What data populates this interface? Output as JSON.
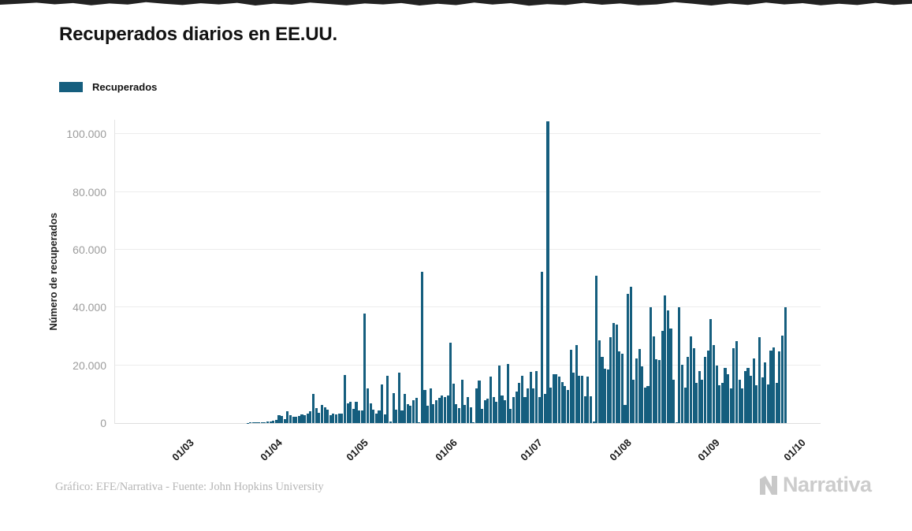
{
  "decor": {
    "top_strip_color": "#222222"
  },
  "header": {
    "title": "Recuperados diarios en EE.UU."
  },
  "legend": {
    "label": "Recuperados",
    "color": "#155e7e"
  },
  "footer": {
    "credit": "Gráfico: EFE/Narrativa - Fuente: John Hopkins University",
    "brand": "Narrativa"
  },
  "chart_data": {
    "type": "bar",
    "title": "Recuperados diarios en EE.UU.",
    "xlabel": "",
    "ylabel": "Número de recuperados",
    "series_name": "Recuperados",
    "bar_color": "#155e7e",
    "grid": "horizontal",
    "legend_position": "top-left",
    "ylim": [
      0,
      105000
    ],
    "y_ticks": [
      {
        "value": 0,
        "label": "0"
      },
      {
        "value": 20000,
        "label": "20.000"
      },
      {
        "value": 40000,
        "label": "40.000"
      },
      {
        "value": 60000,
        "label": "60.000"
      },
      {
        "value": 80000,
        "label": "80.000"
      },
      {
        "value": 100000,
        "label": "100.000"
      }
    ],
    "x_ticks": [
      {
        "day": 0,
        "label": "01/03"
      },
      {
        "day": 31,
        "label": "01/04"
      },
      {
        "day": 61,
        "label": "01/05"
      },
      {
        "day": 92,
        "label": "01/06"
      },
      {
        "day": 122,
        "label": "01/07"
      },
      {
        "day": 153,
        "label": "01/08"
      },
      {
        "day": 184,
        "label": "01/09"
      },
      {
        "day": 214,
        "label": "01/10"
      }
    ],
    "first_day_label": "01/03",
    "values": [
      0,
      0,
      0,
      0,
      0,
      0,
      0,
      0,
      0,
      0,
      0,
      0,
      0,
      0,
      0,
      0,
      0,
      0,
      0,
      0,
      0,
      0,
      100,
      150,
      200,
      250,
      300,
      350,
      400,
      500,
      600,
      900,
      1200,
      2600,
      2400,
      1500,
      4200,
      2700,
      2300,
      2200,
      2400,
      3000,
      2700,
      3200,
      4100,
      10100,
      5100,
      3600,
      6300,
      5500,
      4600,
      2700,
      3200,
      2900,
      3300,
      3200,
      16600,
      6800,
      7300,
      5000,
      7400,
      4500,
      4300,
      37900,
      11900,
      6900,
      4600,
      3300,
      4500,
      13400,
      3100,
      16400,
      500,
      10500,
      4600,
      17400,
      4500,
      10100,
      6500,
      5900,
      7800,
      8700,
      300,
      52300,
      11400,
      5900,
      11900,
      6500,
      7800,
      8700,
      9600,
      9000,
      9600,
      27800,
      13700,
      6500,
      5100,
      15100,
      6400,
      9000,
      5400,
      400,
      11900,
      14600,
      4900,
      8000,
      8500,
      16000,
      9000,
      7500,
      20000,
      9500,
      8000,
      20500,
      5000,
      9000,
      11000,
      14000,
      16500,
      9000,
      12000,
      17800,
      12000,
      18000,
      9000,
      52300,
      10000,
      104400,
      12300,
      16900,
      16900,
      16000,
      14200,
      12800,
      11400,
      25500,
      17400,
      26900,
      16400,
      16400,
      9200,
      16000,
      9200,
      500,
      51000,
      28700,
      22800,
      18900,
      18500,
      29600,
      34600,
      34100,
      24800,
      23900,
      6400,
      44600,
      47300,
      15000,
      22400,
      25600,
      19600,
      12300,
      12700,
      40200,
      30000,
      22000,
      21900,
      31900,
      44100,
      39100,
      32800,
      15000,
      400,
      40200,
      20100,
      12300,
      23000,
      30000,
      26000,
      14000,
      18000,
      15000,
      23000,
      25000,
      36000,
      27000,
      20000,
      13000,
      14000,
      19000,
      17000,
      12000,
      26000,
      28500,
      15000,
      12000,
      18000,
      19000,
      16400,
      22400,
      13200,
      29600,
      15900,
      21000,
      13500,
      25000,
      26300,
      14000,
      24900,
      30300,
      40200
    ]
  }
}
